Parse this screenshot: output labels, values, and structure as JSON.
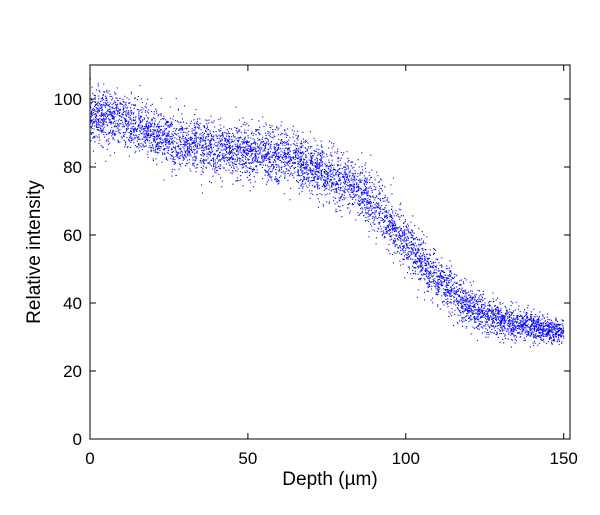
{
  "chart_data": {
    "type": "scatter",
    "xlabel": "Depth (µm)",
    "ylabel": "Relative intensity",
    "xlim": [
      0,
      152
    ],
    "ylim": [
      0,
      110
    ],
    "xticks": [
      0,
      50,
      100,
      150
    ],
    "yticks": [
      0,
      20,
      40,
      60,
      80,
      100
    ],
    "grid": false,
    "marker_color": "#0000ff",
    "series": [
      {
        "trend": {
          "x": [
            0,
            5,
            10,
            15,
            20,
            25,
            30,
            35,
            40,
            45,
            50,
            55,
            60,
            65,
            70,
            75,
            80,
            85,
            90,
            95,
            100,
            105,
            110,
            115,
            120,
            125,
            130,
            135,
            140,
            145,
            150
          ],
          "y": [
            95,
            95,
            94,
            92,
            90,
            88,
            87,
            86,
            85,
            84.5,
            84,
            83.5,
            83,
            82,
            80,
            78,
            76,
            73,
            69,
            64,
            58,
            52,
            47,
            43,
            39,
            36.5,
            35,
            34,
            33,
            32,
            31.5
          ]
        },
        "spread": {
          "x": [
            0,
            30,
            60,
            90,
            110,
            130,
            150
          ],
          "y": [
            4.0,
            4.0,
            4.0,
            3.8,
            3.5,
            2.5,
            1.6
          ]
        },
        "point_count": 6000
      }
    ]
  }
}
